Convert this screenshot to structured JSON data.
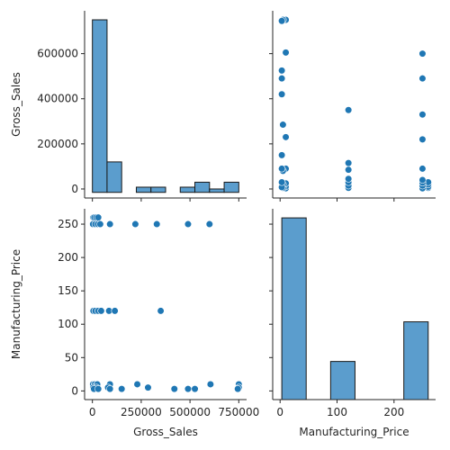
{
  "chart_data": {
    "type": "pairplot",
    "variables": [
      "Gross_Sales",
      "Manufacturing_Price"
    ],
    "color": "#1f77b4",
    "hist_color": "#5b9dcd",
    "grid": false,
    "axes": {
      "Gross_Sales": {
        "label": "Gross_Sales",
        "x_ticks": [
          0,
          250000,
          500000,
          750000
        ],
        "y_ticks": [
          0,
          200000,
          400000,
          600000
        ],
        "x_range": [
          -40000,
          790000
        ],
        "y_range": [
          -40000,
          790000
        ]
      },
      "Manufacturing_Price": {
        "label": "Manufacturing_Price",
        "x_ticks": [
          0,
          100,
          200
        ],
        "y_ticks": [
          0,
          50,
          100,
          150,
          200,
          250
        ],
        "x_range": [
          -13,
          273
        ],
        "y_range": [
          -13,
          273
        ]
      }
    },
    "points": [
      {
        "gross_sales": 5000,
        "manufacturing_price": 260
      },
      {
        "gross_sales": 10000,
        "manufacturing_price": 260
      },
      {
        "gross_sales": 20000,
        "manufacturing_price": 260
      },
      {
        "gross_sales": 30000,
        "manufacturing_price": 260
      },
      {
        "gross_sales": 3000,
        "manufacturing_price": 250
      },
      {
        "gross_sales": 15000,
        "manufacturing_price": 250
      },
      {
        "gross_sales": 28000,
        "manufacturing_price": 250
      },
      {
        "gross_sales": 40000,
        "manufacturing_price": 250
      },
      {
        "gross_sales": 90000,
        "manufacturing_price": 250
      },
      {
        "gross_sales": 220000,
        "manufacturing_price": 250
      },
      {
        "gross_sales": 330000,
        "manufacturing_price": 250
      },
      {
        "gross_sales": 490000,
        "manufacturing_price": 250
      },
      {
        "gross_sales": 600000,
        "manufacturing_price": 250
      },
      {
        "gross_sales": 5000,
        "manufacturing_price": 120
      },
      {
        "gross_sales": 15000,
        "manufacturing_price": 120
      },
      {
        "gross_sales": 30000,
        "manufacturing_price": 120
      },
      {
        "gross_sales": 45000,
        "manufacturing_price": 120
      },
      {
        "gross_sales": 85000,
        "manufacturing_price": 120
      },
      {
        "gross_sales": 115000,
        "manufacturing_price": 120
      },
      {
        "gross_sales": 350000,
        "manufacturing_price": 120
      },
      {
        "gross_sales": 3000,
        "manufacturing_price": 10
      },
      {
        "gross_sales": 12000,
        "manufacturing_price": 10
      },
      {
        "gross_sales": 25000,
        "manufacturing_price": 10
      },
      {
        "gross_sales": 90000,
        "manufacturing_price": 10
      },
      {
        "gross_sales": 230000,
        "manufacturing_price": 10
      },
      {
        "gross_sales": 605000,
        "manufacturing_price": 10
      },
      {
        "gross_sales": 750000,
        "manufacturing_price": 10
      },
      {
        "gross_sales": 5000,
        "manufacturing_price": 5
      },
      {
        "gross_sales": 20000,
        "manufacturing_price": 5
      },
      {
        "gross_sales": 80000,
        "manufacturing_price": 5
      },
      {
        "gross_sales": 285000,
        "manufacturing_price": 5
      },
      {
        "gross_sales": 750000,
        "manufacturing_price": 5
      },
      {
        "gross_sales": 8000,
        "manufacturing_price": 3
      },
      {
        "gross_sales": 30000,
        "manufacturing_price": 3
      },
      {
        "gross_sales": 90000,
        "manufacturing_price": 3
      },
      {
        "gross_sales": 150000,
        "manufacturing_price": 3
      },
      {
        "gross_sales": 420000,
        "manufacturing_price": 3
      },
      {
        "gross_sales": 490000,
        "manufacturing_price": 3
      },
      {
        "gross_sales": 525000,
        "manufacturing_price": 3
      },
      {
        "gross_sales": 745000,
        "manufacturing_price": 3
      }
    ],
    "histograms": {
      "Gross_Sales": {
        "bin_edges": [
          0,
          75000,
          150000,
          225000,
          300000,
          375000,
          450000,
          525000,
          600000,
          675000,
          750000
        ],
        "heights": [
          750000,
          120000,
          -15000,
          8000,
          8000,
          -15000,
          8000,
          30000,
          0,
          30000
        ]
      },
      "Manufacturing_Price": {
        "bin_edges": [
          3,
          45.8,
          88.7,
          131.5,
          174.3,
          217.2,
          260
        ],
        "heights": [
          243,
          0,
          51,
          0,
          0,
          104
        ]
      }
    }
  }
}
